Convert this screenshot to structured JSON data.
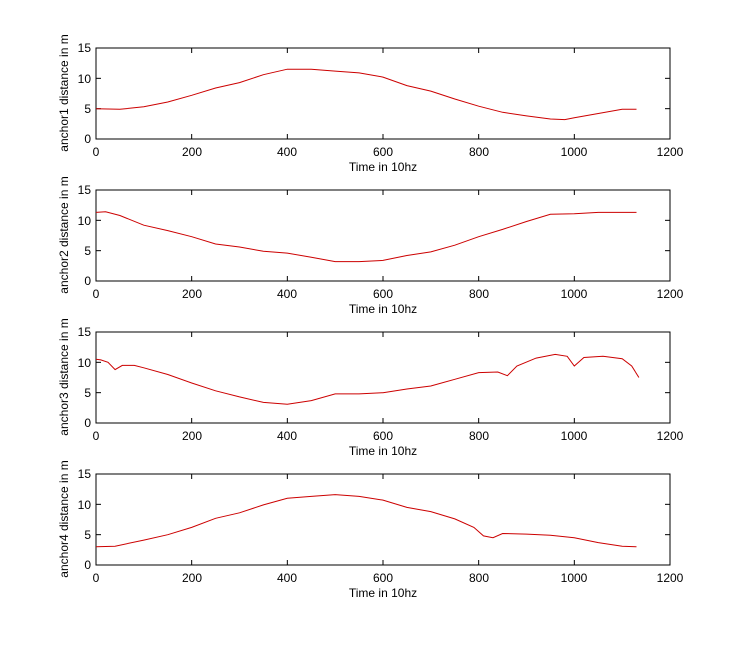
{
  "chart_data": [
    {
      "type": "line",
      "title": "",
      "xlabel": "Time in 10hz",
      "ylabel": "anchor1 distance in m",
      "xlim": [
        0,
        1200
      ],
      "ylim": [
        0,
        15
      ],
      "xticks": [
        0,
        200,
        400,
        600,
        800,
        1000,
        1200
      ],
      "yticks": [
        0,
        5,
        10,
        15
      ],
      "grid": false,
      "color": "#cc0000",
      "series": [
        {
          "name": "anchor1",
          "x": [
            0,
            50,
            100,
            150,
            200,
            250,
            300,
            350,
            400,
            450,
            500,
            550,
            600,
            650,
            700,
            750,
            800,
            850,
            900,
            950,
            980,
            1000,
            1050,
            1100,
            1130
          ],
          "values": [
            5.0,
            4.9,
            5.3,
            6.1,
            7.2,
            8.4,
            9.3,
            10.6,
            11.5,
            11.5,
            11.2,
            10.9,
            10.2,
            8.8,
            7.9,
            6.6,
            5.4,
            4.4,
            3.8,
            3.3,
            3.2,
            3.5,
            4.2,
            4.9,
            4.9
          ]
        }
      ]
    },
    {
      "type": "line",
      "title": "",
      "xlabel": "Time in 10hz",
      "ylabel": "anchor2 distance in m",
      "xlim": [
        0,
        1200
      ],
      "ylim": [
        0,
        15
      ],
      "xticks": [
        0,
        200,
        400,
        600,
        800,
        1000,
        1200
      ],
      "yticks": [
        0,
        5,
        10,
        15
      ],
      "grid": false,
      "color": "#cc0000",
      "series": [
        {
          "name": "anchor2",
          "x": [
            0,
            20,
            50,
            100,
            150,
            200,
            250,
            300,
            350,
            400,
            450,
            500,
            550,
            600,
            650,
            700,
            750,
            800,
            850,
            900,
            950,
            1000,
            1050,
            1100,
            1130
          ],
          "values": [
            11.3,
            11.4,
            10.8,
            9.2,
            8.3,
            7.3,
            6.1,
            5.6,
            4.9,
            4.6,
            3.9,
            3.2,
            3.2,
            3.4,
            4.2,
            4.8,
            5.9,
            7.3,
            8.5,
            9.8,
            11.0,
            11.1,
            11.3,
            11.3,
            11.3
          ]
        }
      ]
    },
    {
      "type": "line",
      "title": "",
      "xlabel": "Time in 10hz",
      "ylabel": "anchor3 distance in m",
      "xlim": [
        0,
        1200
      ],
      "ylim": [
        0,
        15
      ],
      "xticks": [
        0,
        200,
        400,
        600,
        800,
        1000,
        1200
      ],
      "yticks": [
        0,
        5,
        10,
        15
      ],
      "grid": false,
      "color": "#cc0000",
      "series": [
        {
          "name": "anchor3",
          "x": [
            0,
            10,
            25,
            40,
            55,
            80,
            100,
            150,
            200,
            250,
            300,
            350,
            400,
            450,
            500,
            550,
            600,
            650,
            700,
            750,
            800,
            840,
            860,
            880,
            920,
            960,
            985,
            1000,
            1020,
            1060,
            1100,
            1120,
            1135
          ],
          "values": [
            10.5,
            10.4,
            10.0,
            8.8,
            9.5,
            9.5,
            9.1,
            8.0,
            6.6,
            5.3,
            4.3,
            3.4,
            3.1,
            3.7,
            4.8,
            4.8,
            5.0,
            5.6,
            6.1,
            7.2,
            8.3,
            8.4,
            7.8,
            9.4,
            10.7,
            11.3,
            11.0,
            9.4,
            10.8,
            11.0,
            10.6,
            9.4,
            7.5
          ]
        }
      ]
    },
    {
      "type": "line",
      "title": "",
      "xlabel": "Time in 10hz",
      "ylabel": "anchor4 distance in m",
      "xlim": [
        0,
        1200
      ],
      "ylim": [
        0,
        15
      ],
      "xticks": [
        0,
        200,
        400,
        600,
        800,
        1000,
        1200
      ],
      "yticks": [
        0,
        5,
        10,
        15
      ],
      "grid": false,
      "color": "#cc0000",
      "series": [
        {
          "name": "anchor4",
          "x": [
            0,
            40,
            100,
            150,
            200,
            250,
            300,
            350,
            400,
            450,
            500,
            550,
            600,
            650,
            700,
            750,
            790,
            810,
            830,
            850,
            900,
            950,
            1000,
            1050,
            1100,
            1130
          ],
          "values": [
            3.0,
            3.1,
            4.1,
            5.0,
            6.2,
            7.7,
            8.6,
            9.9,
            11.0,
            11.3,
            11.6,
            11.3,
            10.7,
            9.5,
            8.8,
            7.6,
            6.2,
            4.8,
            4.5,
            5.2,
            5.1,
            4.9,
            4.5,
            3.7,
            3.1,
            3.0
          ]
        }
      ]
    }
  ]
}
